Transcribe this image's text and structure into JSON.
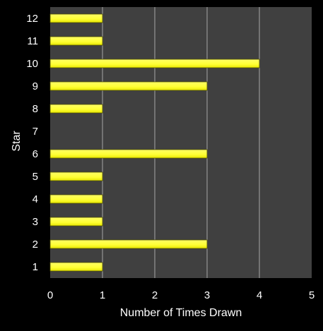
{
  "chart_data": {
    "type": "bar",
    "orientation": "horizontal",
    "categories": [
      "1",
      "2",
      "3",
      "4",
      "5",
      "6",
      "7",
      "8",
      "9",
      "10",
      "11",
      "12"
    ],
    "values": [
      1,
      3,
      1,
      1,
      1,
      3,
      0,
      1,
      3,
      4,
      1,
      1
    ],
    "title": "",
    "xlabel": "Number of Times Drawn",
    "ylabel": "Star",
    "xlim": [
      0,
      5
    ],
    "x_ticks": [
      "0",
      "1",
      "2",
      "3",
      "4",
      "5"
    ],
    "grid": "vertical",
    "legend": "none",
    "colors": {
      "background": "#000000",
      "plot_area": "#404040",
      "bar_fill": "#ffff33",
      "bar_stroke": "#555500",
      "gridline": "#a6a6a6",
      "text": "#ffffff"
    }
  }
}
